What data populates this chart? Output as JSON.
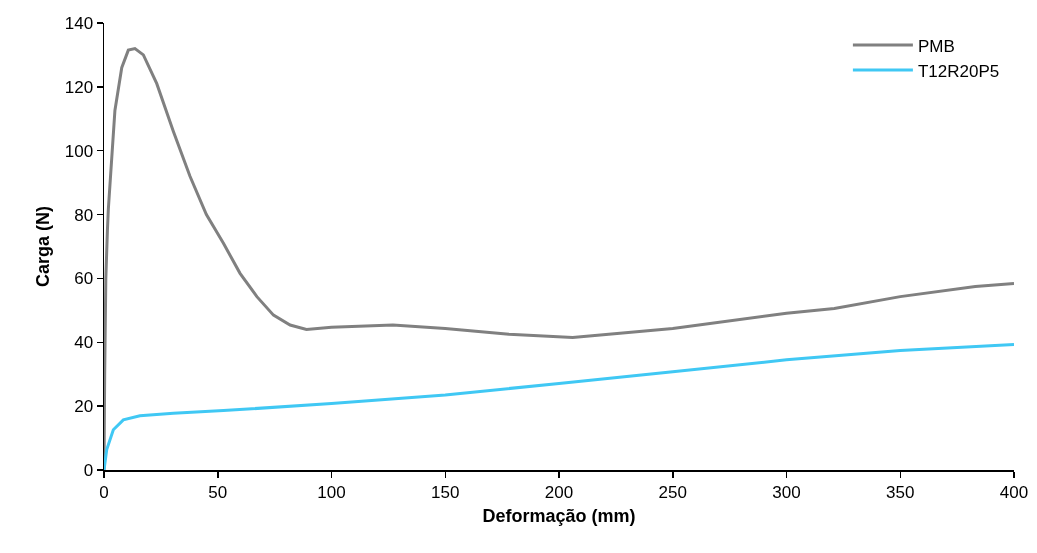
{
  "chart_data": {
    "type": "line",
    "xlabel": "Deformação (mm)",
    "ylabel": "Carga (N)",
    "xlim": [
      0,
      400
    ],
    "xticks": [
      0,
      50,
      100,
      150,
      200,
      250,
      300,
      350,
      400
    ],
    "ylim": [
      0,
      140
    ],
    "yticks": [
      0,
      20,
      40,
      60,
      80,
      100,
      120,
      140
    ],
    "grid": false,
    "legend": "top right",
    "marker": "none",
    "line_style": "solid",
    "series": [
      {
        "name": "PMB",
        "color": "#808080",
        "x": [
          0,
          0.3,
          0.8,
          1.5,
          1.9,
          4.8,
          7.8,
          10.7,
          13.6,
          17.3,
          23.2,
          30.5,
          37.8,
          45,
          52.5,
          59.8,
          67.2,
          74.5,
          81.8,
          89,
          100,
          127,
          150,
          178,
          206,
          250,
          300,
          321,
          350,
          383,
          400
        ],
        "values": [
          0,
          30,
          60,
          75,
          81.6,
          112.6,
          126,
          131.5,
          132,
          130,
          121,
          106,
          92,
          80,
          71,
          61.6,
          54.3,
          48.5,
          45.4,
          44,
          44.7,
          45.4,
          44.3,
          42.5,
          41.5,
          44.3,
          49.1,
          50.6,
          54.3,
          57.5,
          58.4
        ]
      },
      {
        "name": "T12R20P5",
        "color": "#40c8f4",
        "x": [
          0,
          1.2,
          4.1,
          8.5,
          15.8,
          30.5,
          52.5,
          100,
          150,
          200,
          250,
          300,
          350,
          400
        ],
        "values": [
          0,
          6.4,
          12.6,
          15.7,
          17,
          17.8,
          18.6,
          20.8,
          23.5,
          27.1,
          30.8,
          34.5,
          37.4,
          39.3
        ]
      }
    ]
  }
}
